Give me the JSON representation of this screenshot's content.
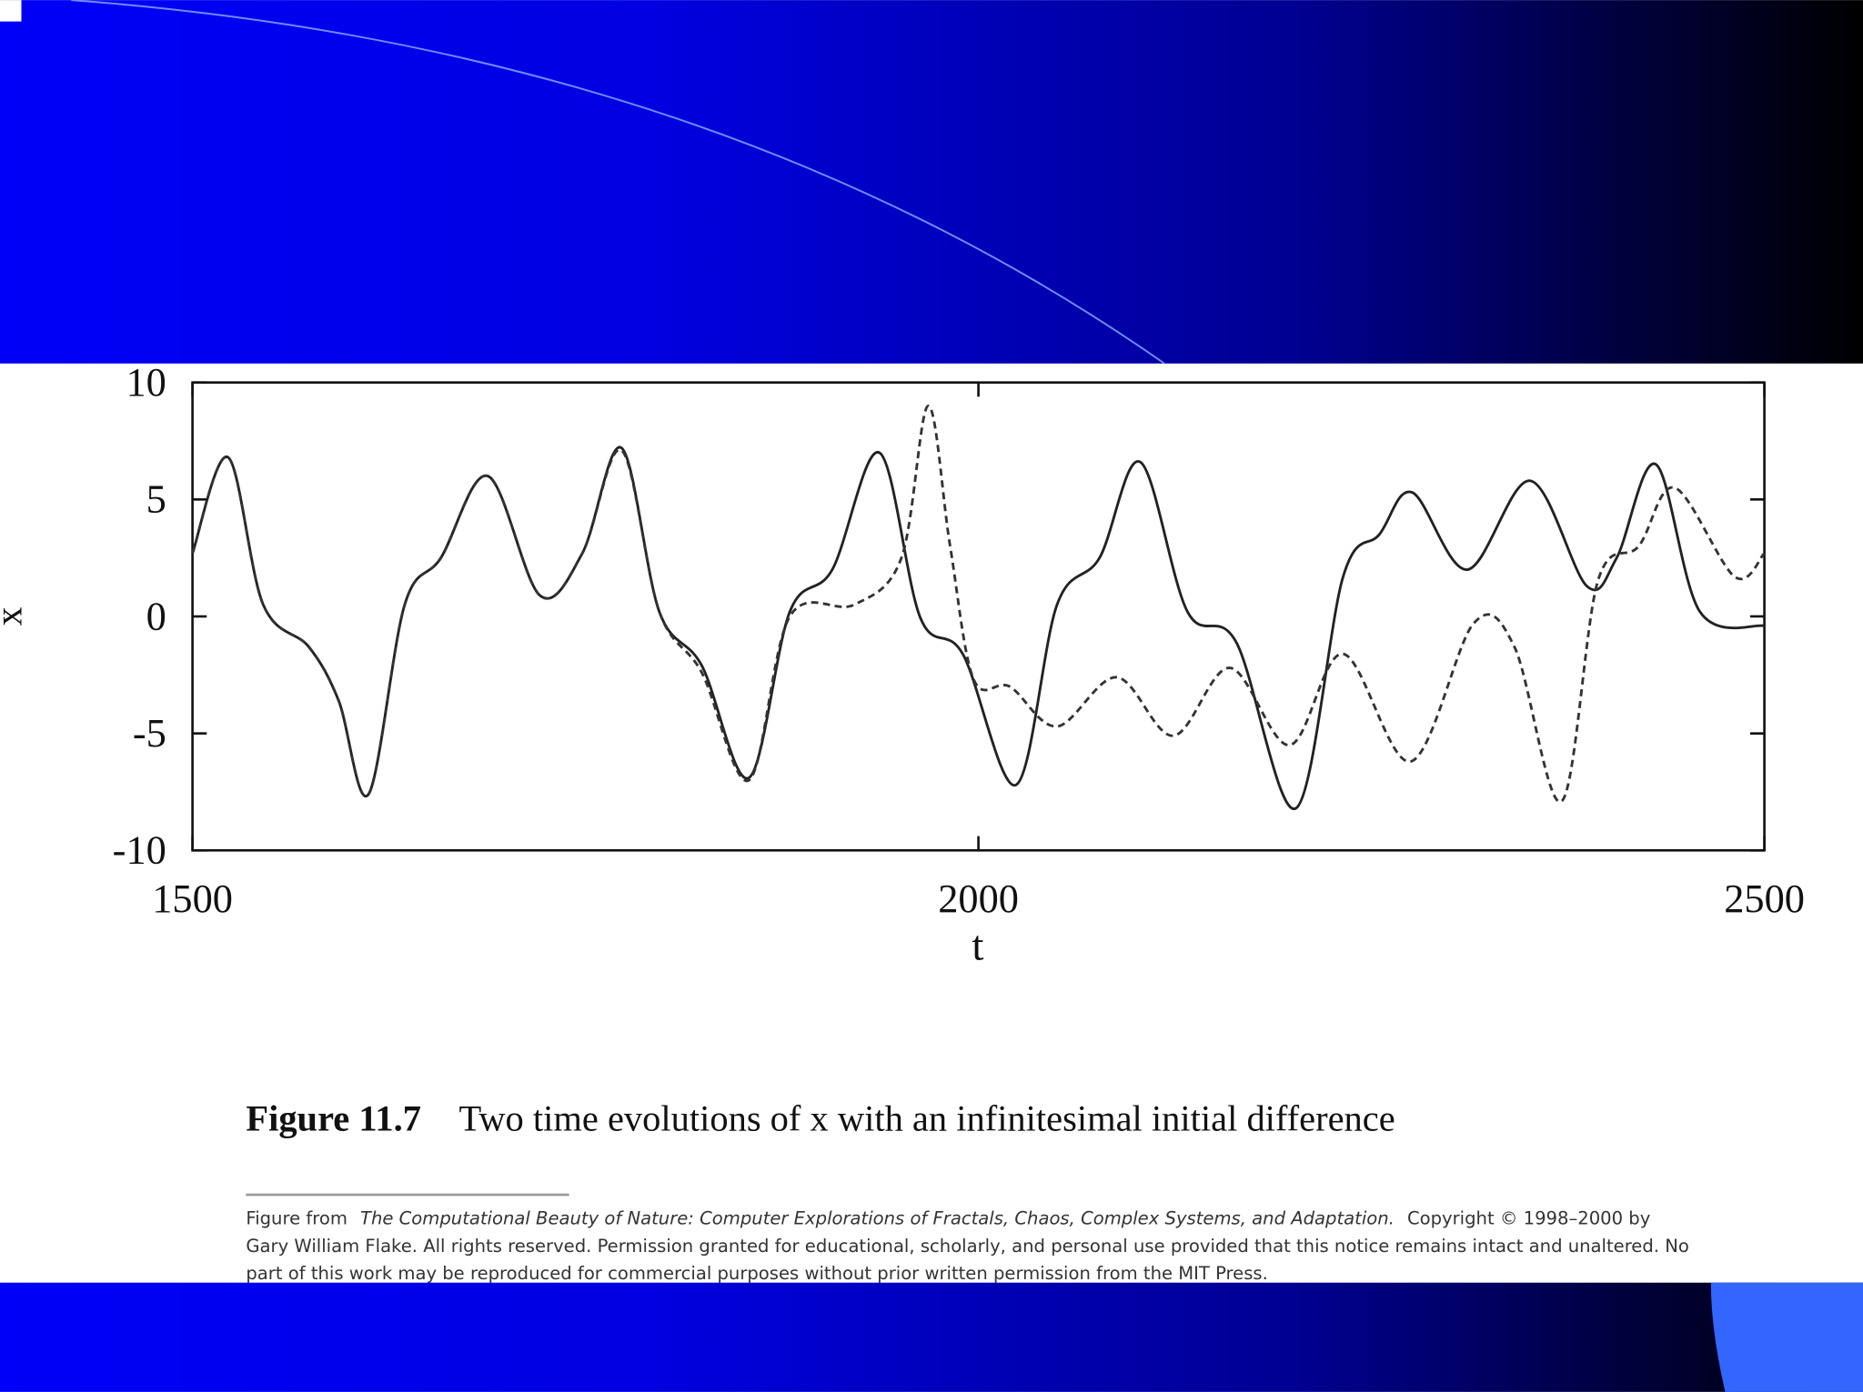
{
  "chart_data": {
    "type": "line",
    "xlabel": "t",
    "ylabel": "x",
    "xlim": [
      1500,
      2500
    ],
    "xticks": [
      1500,
      2000,
      2500
    ],
    "ylim": [
      -10,
      10
    ],
    "yticks": [
      -10,
      -5,
      0,
      5,
      10
    ],
    "grid": false,
    "series": [
      {
        "color": "#222222",
        "dash": false,
        "x": [
          1500,
          1522.7,
          1545,
          1574,
          1593,
          1612,
          1635,
          1658,
          1688,
          1721,
          1748,
          1773,
          1797,
          1824,
          1854,
          1880,
          1907,
          1937,
          1963,
          1990,
          2024,
          2050,
          2077,
          2103,
          2133,
          2164,
          2202,
          2232,
          2255,
          2276,
          2311,
          2351,
          2387,
          2406,
          2431,
          2459,
          2500
        ],
        "values": [
          2.7,
          6.8,
          0.5,
          -1.3,
          -3.6,
          -7.6,
          0.5,
          2.5,
          6.0,
          0.9,
          2.7,
          7.2,
          0.2,
          -2.1,
          -6.9,
          0.2,
          2.0,
          7.0,
          -0.05,
          -1.6,
          -7.2,
          0.5,
          2.5,
          6.6,
          0.2,
          -1.1,
          -8.2,
          1.7,
          3.5,
          5.3,
          2.0,
          5.8,
          1.3,
          2.5,
          6.5,
          0.2,
          -0.4
        ]
      },
      {
        "color": "#333333",
        "dash": true,
        "x": [
          1500,
          1522.7,
          1545,
          1574,
          1593,
          1612,
          1635,
          1658,
          1688,
          1721,
          1748,
          1773,
          1797,
          1824,
          1854,
          1880,
          1921,
          1951,
          1968,
          1982,
          1997,
          2020,
          2050,
          2088,
          2124,
          2160,
          2198,
          2232,
          2275,
          2315,
          2341,
          2371,
          2394,
          2420,
          2443,
          2481,
          2500
        ],
        "values": [
          2.7,
          6.8,
          0.5,
          -1.3,
          -3.6,
          -7.6,
          0.5,
          2.5,
          6.0,
          0.9,
          2.7,
          7.1,
          0.2,
          -2.4,
          -7.0,
          0,
          0.5,
          2.5,
          9.0,
          3.0,
          -2.7,
          -3.0,
          -4.7,
          -2.6,
          -5.1,
          -2.2,
          -5.5,
          -1.6,
          -6.2,
          -0.3,
          -1.3,
          -7.9,
          1.5,
          3.0,
          5.5,
          1.7,
          2.7
        ]
      }
    ],
    "caption_number": "Figure 11.7",
    "caption": "Two time evolutions of x with an infinitesimal initial difference",
    "footnote_lead": "Figure from",
    "footnote_book": "The Computational Beauty of Nature: Computer Explorations of Fractals, Chaos, Complex Systems, and Adaptation.",
    "footnote_line1_end": "Copyright © 1998–2000 by",
    "footnote_line2": "Gary William Flake. All rights reserved. Permission granted for educational, scholarly, and personal use provided that this notice remains intact and unaltered. No",
    "footnote_line3": "part of this work may be reproduced for commercial purposes without prior written permission from the MIT Press."
  }
}
